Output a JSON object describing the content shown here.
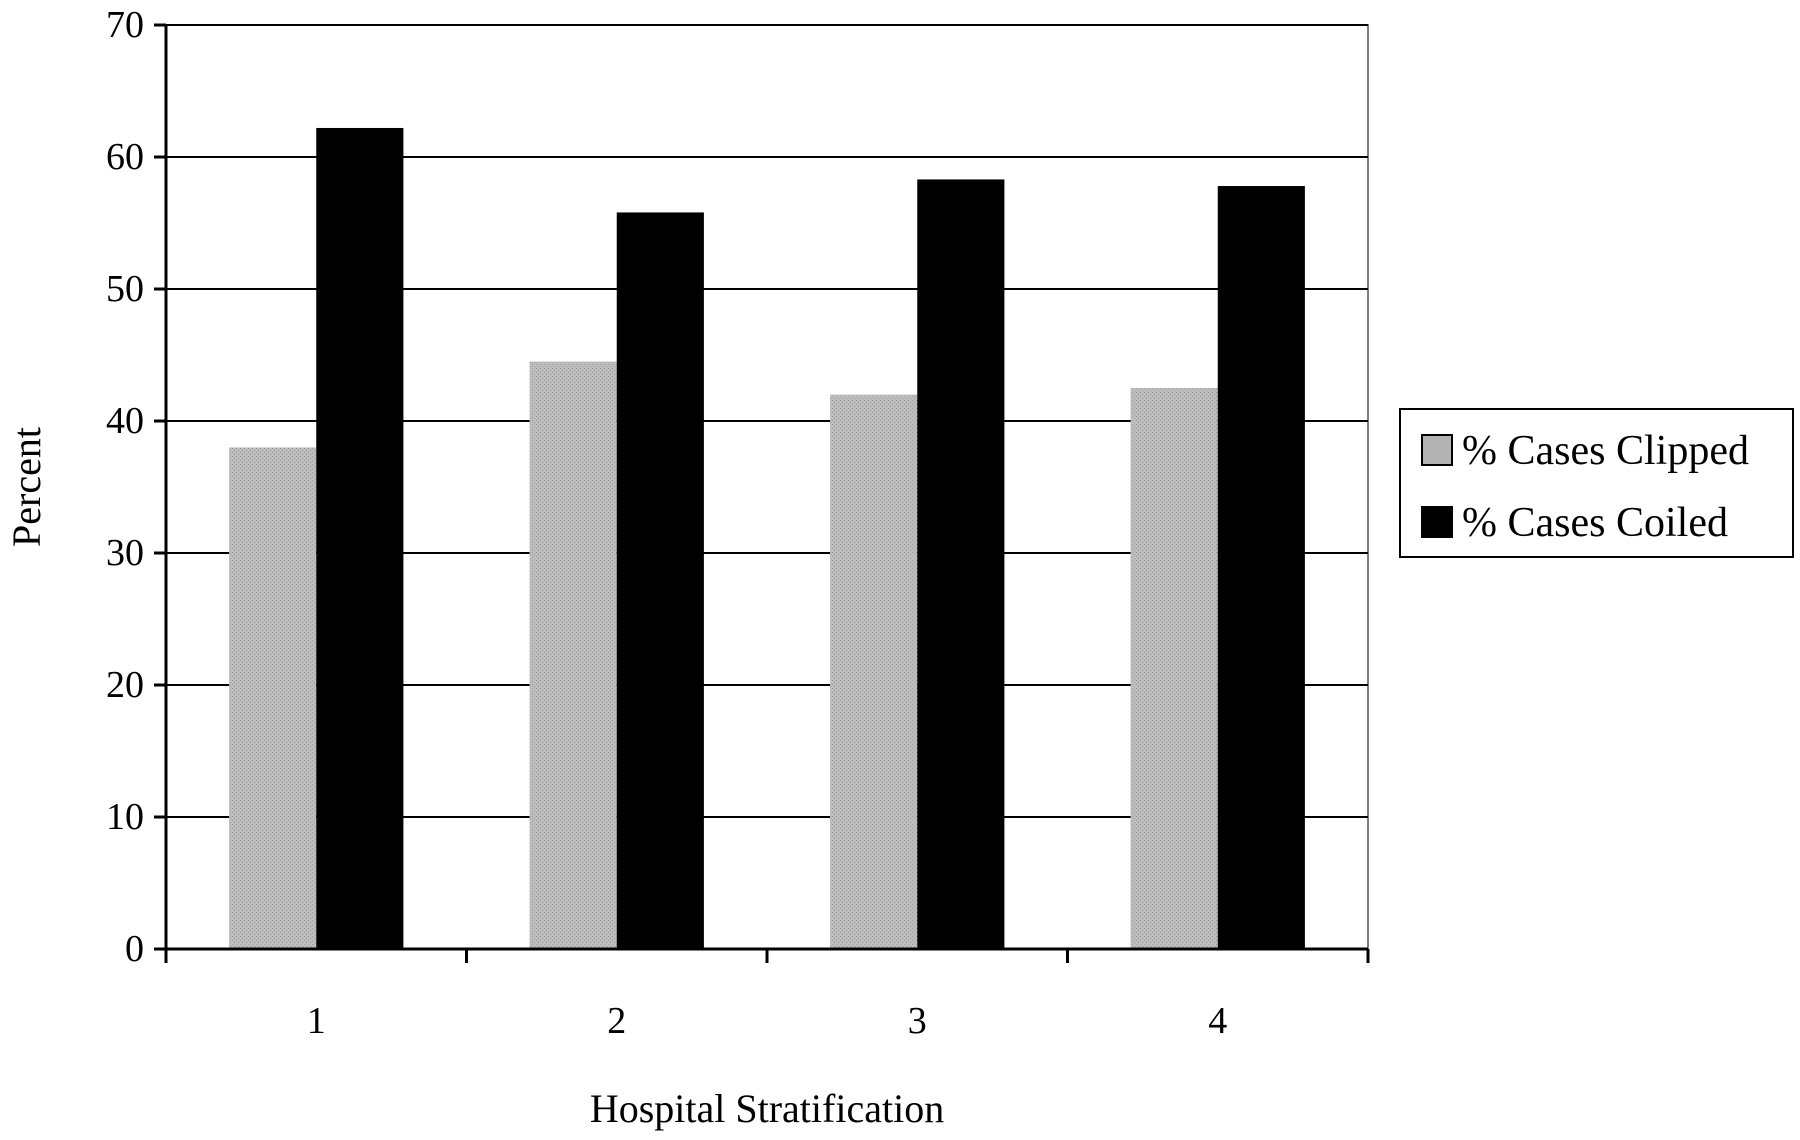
{
  "chart_data": {
    "type": "bar",
    "title": "",
    "xlabel": "Hospital Stratification",
    "ylabel": "Percent",
    "categories": [
      "1",
      "2",
      "3",
      "4"
    ],
    "ylim": [
      0,
      70
    ],
    "yticks": [
      0,
      10,
      20,
      30,
      40,
      50,
      60,
      70
    ],
    "grid": true,
    "legend_position": "right",
    "series": [
      {
        "name": "% Cases Clipped",
        "values": [
          38,
          44.5,
          42,
          42.5
        ],
        "color": "#b3b3b3"
      },
      {
        "name": "% Cases Coiled",
        "values": [
          62.2,
          55.8,
          58.3,
          57.8
        ],
        "color": "#000000"
      }
    ]
  }
}
